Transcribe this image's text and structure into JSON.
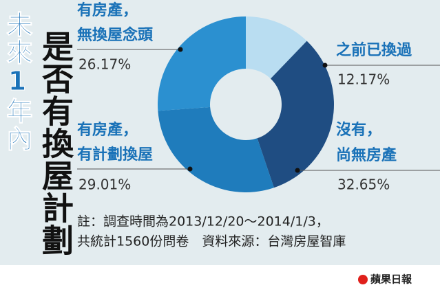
{
  "chart_data": {
    "type": "donut",
    "title": "未來1年內",
    "subtitle": "是否有換屋計劃",
    "categories": [
      [
        "之前已換過"
      ],
      [
        "沒有，",
        "尚無房產"
      ],
      [
        "有房產，",
        "有計劃換屋"
      ],
      [
        "有房產，",
        "無換屋念頭"
      ]
    ],
    "values": [
      12.17,
      32.65,
      29.01,
      26.17
    ],
    "value_labels": [
      "12.17%",
      "32.65%",
      "29.01%",
      "26.17%"
    ],
    "colors": [
      "#b9ddf1",
      "#1f4d82",
      "#1f7cbc",
      "#2b90d0"
    ],
    "note": [
      "註：調查時間為2013/12/20～2014/1/3，",
      "共統計1560份問卷　資料來源：台灣房屋智庫"
    ],
    "source_logo": "蘋果日報"
  }
}
